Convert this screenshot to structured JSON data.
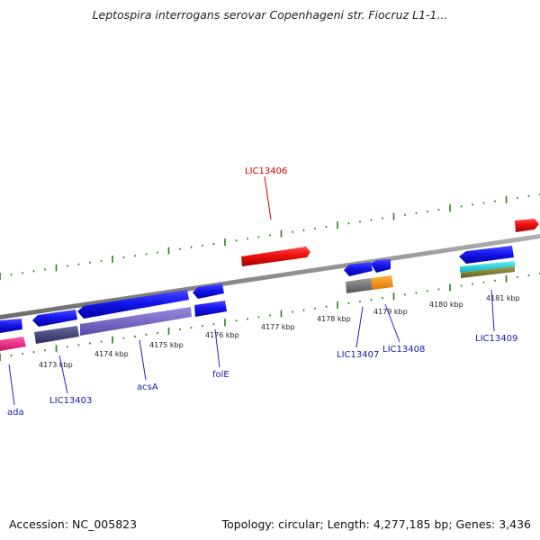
{
  "title": "Leptospira interrogans serovar Copenhageni str. Fiocruz L1-1...",
  "footer": {
    "accession": "Accession: NC_005823",
    "topology": "Topology: circular; Length: 4,277,185 bp; Genes: 3,436"
  },
  "colors": {
    "backbone": "#8a8a8a",
    "tick": "#2e7d1e",
    "label_default": "#1a1aa6",
    "label_highlight": "#cc0000",
    "label_line": "#2222cc"
  },
  "kbp_labels": [
    "4173 kbp",
    "4174 kbp",
    "4175 kbp",
    "4176 kbp",
    "4177 kbp",
    "4178 kbp",
    "4179 kbp",
    "4180 kbp",
    "4181 kbp"
  ],
  "gene_labels": [
    {
      "name": "ada",
      "highlight": false
    },
    {
      "name": "LIC13403",
      "highlight": false
    },
    {
      "name": "acsA",
      "highlight": false
    },
    {
      "name": "folE",
      "highlight": false
    },
    {
      "name": "LIC13406",
      "highlight": true
    },
    {
      "name": "LIC13407",
      "highlight": false
    },
    {
      "name": "LIC13408",
      "highlight": false
    },
    {
      "name": "LIC13409",
      "highlight": false
    }
  ]
}
